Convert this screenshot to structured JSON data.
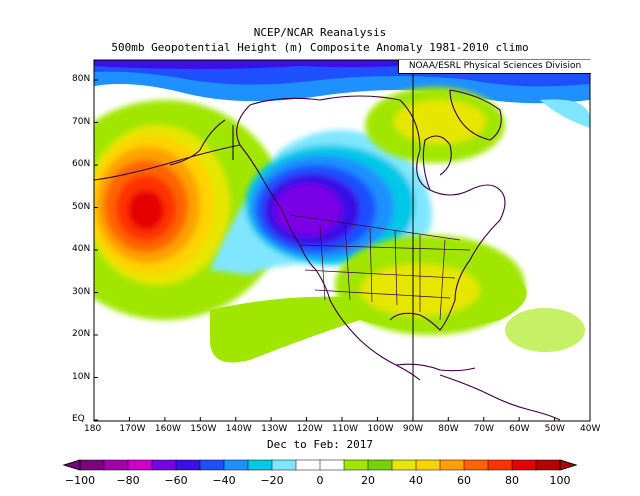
{
  "title_line1": "NCEP/NCAR Reanalysis",
  "title_line2": "500mb Geopotential Height (m) Composite Anomaly 1981-2010 climo",
  "credit": "NOAA/ESRL Physical Sciences Division",
  "period_label": "Dec to Feb: 2017",
  "lat_labels": [
    "80N",
    "70N",
    "60N",
    "50N",
    "40N",
    "30N",
    "20N",
    "10N",
    "EQ"
  ],
  "lon_labels": [
    "180",
    "170W",
    "160W",
    "150W",
    "140W",
    "130W",
    "120W",
    "110W",
    "100W",
    "90W",
    "80W",
    "70W",
    "60W",
    "50W",
    "40W"
  ],
  "colorbar": {
    "labels": [
      "−100",
      "−80",
      "−60",
      "−40",
      "−20",
      "0",
      "20",
      "40",
      "60",
      "80",
      "100"
    ],
    "colors": [
      "#7a0080",
      "#a000a8",
      "#c800c8",
      "#7a00e6",
      "#3a10e6",
      "#1e50ff",
      "#1e90ff",
      "#00c8e6",
      "#80e6ff",
      "#ffffff",
      "#ffffff",
      "#a0e600",
      "#78d200",
      "#e6e600",
      "#ffd200",
      "#ffa000",
      "#ff6400",
      "#ff3200",
      "#e60000",
      "#b40000"
    ]
  },
  "map_features": {
    "ridge_center": "North Pacific (~50N 165W), +100 m",
    "trough_center": "Western North America (~50N 120W), -70 m",
    "ridge_east": "Southeastern US / Gulf, +40 m",
    "ridge_north": "Hudson Bay / Baffin region, +40 m",
    "arctic_low": "Northern boundary, blue anomalies"
  }
}
